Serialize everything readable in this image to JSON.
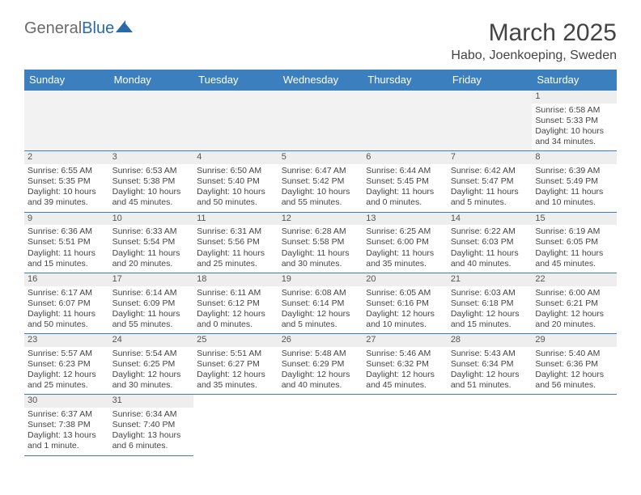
{
  "logo": {
    "part1": "General",
    "part2": "Blue"
  },
  "title": "March 2025",
  "location": "Habo, Joenkoeping, Sweden",
  "colors": {
    "header_bg": "#3b7fbf",
    "header_text": "#ffffff",
    "daynum_bg": "#eeeeee",
    "border": "#3b7fbf",
    "text": "#444444"
  },
  "weekdays": [
    "Sunday",
    "Monday",
    "Tuesday",
    "Wednesday",
    "Thursday",
    "Friday",
    "Saturday"
  ],
  "weeks": [
    [
      null,
      null,
      null,
      null,
      null,
      null,
      {
        "n": "1",
        "sr": "6:58 AM",
        "ss": "5:33 PM",
        "dl": "10 hours and 34 minutes."
      }
    ],
    [
      {
        "n": "2",
        "sr": "6:55 AM",
        "ss": "5:35 PM",
        "dl": "10 hours and 39 minutes."
      },
      {
        "n": "3",
        "sr": "6:53 AM",
        "ss": "5:38 PM",
        "dl": "10 hours and 45 minutes."
      },
      {
        "n": "4",
        "sr": "6:50 AM",
        "ss": "5:40 PM",
        "dl": "10 hours and 50 minutes."
      },
      {
        "n": "5",
        "sr": "6:47 AM",
        "ss": "5:42 PM",
        "dl": "10 hours and 55 minutes."
      },
      {
        "n": "6",
        "sr": "6:44 AM",
        "ss": "5:45 PM",
        "dl": "11 hours and 0 minutes."
      },
      {
        "n": "7",
        "sr": "6:42 AM",
        "ss": "5:47 PM",
        "dl": "11 hours and 5 minutes."
      },
      {
        "n": "8",
        "sr": "6:39 AM",
        "ss": "5:49 PM",
        "dl": "11 hours and 10 minutes."
      }
    ],
    [
      {
        "n": "9",
        "sr": "6:36 AM",
        "ss": "5:51 PM",
        "dl": "11 hours and 15 minutes."
      },
      {
        "n": "10",
        "sr": "6:33 AM",
        "ss": "5:54 PM",
        "dl": "11 hours and 20 minutes."
      },
      {
        "n": "11",
        "sr": "6:31 AM",
        "ss": "5:56 PM",
        "dl": "11 hours and 25 minutes."
      },
      {
        "n": "12",
        "sr": "6:28 AM",
        "ss": "5:58 PM",
        "dl": "11 hours and 30 minutes."
      },
      {
        "n": "13",
        "sr": "6:25 AM",
        "ss": "6:00 PM",
        "dl": "11 hours and 35 minutes."
      },
      {
        "n": "14",
        "sr": "6:22 AM",
        "ss": "6:03 PM",
        "dl": "11 hours and 40 minutes."
      },
      {
        "n": "15",
        "sr": "6:19 AM",
        "ss": "6:05 PM",
        "dl": "11 hours and 45 minutes."
      }
    ],
    [
      {
        "n": "16",
        "sr": "6:17 AM",
        "ss": "6:07 PM",
        "dl": "11 hours and 50 minutes."
      },
      {
        "n": "17",
        "sr": "6:14 AM",
        "ss": "6:09 PM",
        "dl": "11 hours and 55 minutes."
      },
      {
        "n": "18",
        "sr": "6:11 AM",
        "ss": "6:12 PM",
        "dl": "12 hours and 0 minutes."
      },
      {
        "n": "19",
        "sr": "6:08 AM",
        "ss": "6:14 PM",
        "dl": "12 hours and 5 minutes."
      },
      {
        "n": "20",
        "sr": "6:05 AM",
        "ss": "6:16 PM",
        "dl": "12 hours and 10 minutes."
      },
      {
        "n": "21",
        "sr": "6:03 AM",
        "ss": "6:18 PM",
        "dl": "12 hours and 15 minutes."
      },
      {
        "n": "22",
        "sr": "6:00 AM",
        "ss": "6:21 PM",
        "dl": "12 hours and 20 minutes."
      }
    ],
    [
      {
        "n": "23",
        "sr": "5:57 AM",
        "ss": "6:23 PM",
        "dl": "12 hours and 25 minutes."
      },
      {
        "n": "24",
        "sr": "5:54 AM",
        "ss": "6:25 PM",
        "dl": "12 hours and 30 minutes."
      },
      {
        "n": "25",
        "sr": "5:51 AM",
        "ss": "6:27 PM",
        "dl": "12 hours and 35 minutes."
      },
      {
        "n": "26",
        "sr": "5:48 AM",
        "ss": "6:29 PM",
        "dl": "12 hours and 40 minutes."
      },
      {
        "n": "27",
        "sr": "5:46 AM",
        "ss": "6:32 PM",
        "dl": "12 hours and 45 minutes."
      },
      {
        "n": "28",
        "sr": "5:43 AM",
        "ss": "6:34 PM",
        "dl": "12 hours and 51 minutes."
      },
      {
        "n": "29",
        "sr": "5:40 AM",
        "ss": "6:36 PM",
        "dl": "12 hours and 56 minutes."
      }
    ],
    [
      {
        "n": "30",
        "sr": "6:37 AM",
        "ss": "7:38 PM",
        "dl": "13 hours and 1 minute."
      },
      {
        "n": "31",
        "sr": "6:34 AM",
        "ss": "7:40 PM",
        "dl": "13 hours and 6 minutes."
      },
      null,
      null,
      null,
      null,
      null
    ]
  ],
  "labels": {
    "sunrise": "Sunrise:",
    "sunset": "Sunset:",
    "daylight": "Daylight:"
  }
}
